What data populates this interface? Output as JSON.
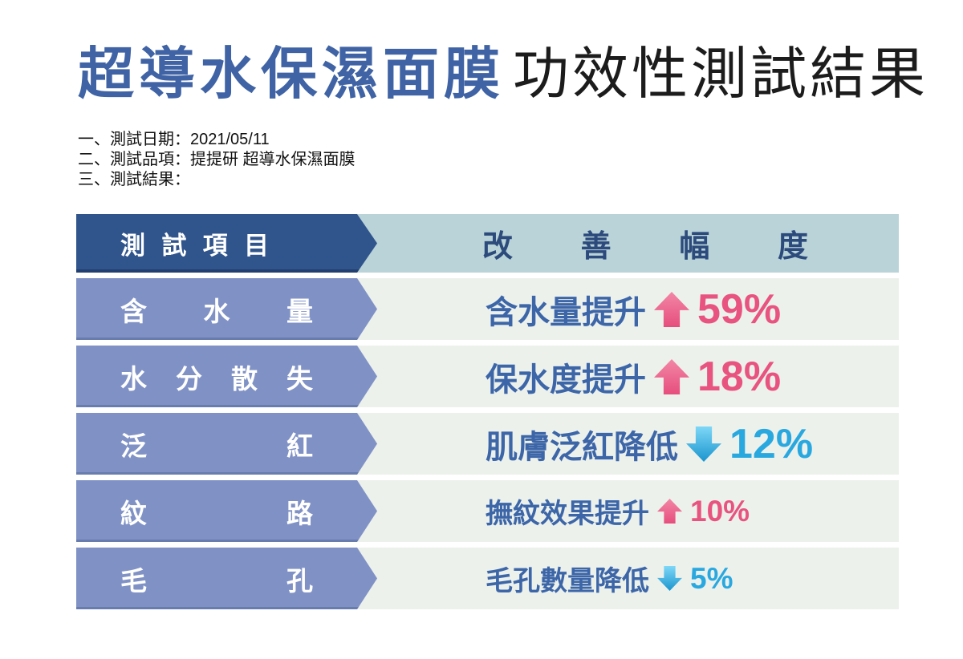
{
  "title": {
    "highlight": "超導水保濕面膜",
    "rest": "功效性測試結果"
  },
  "meta": {
    "lines": [
      "一、測試日期：2021/05/11",
      "二、測試品項：提提研 超導水保濕面膜",
      "三、測試結果："
    ]
  },
  "table": {
    "header": {
      "left": "測試項目",
      "right": "改善幅度"
    },
    "rows": [
      {
        "item": "含水量",
        "result": "含水量提升",
        "direction": "up",
        "value": "59%",
        "size": "large"
      },
      {
        "item": "水分散失",
        "result": "保水度提升",
        "direction": "up",
        "value": "18%",
        "size": "large"
      },
      {
        "item": "泛紅",
        "result": "肌膚泛紅降低",
        "direction": "down",
        "value": "12%",
        "size": "large"
      },
      {
        "item": "紋路",
        "result": "撫紋效果提升",
        "direction": "up",
        "value": "10%",
        "size": "small"
      },
      {
        "item": "毛孔",
        "result": "毛孔數量降低",
        "direction": "down",
        "value": "5%",
        "size": "small"
      }
    ]
  },
  "icons": {
    "up_arrow": "up-arrow-icon",
    "down_arrow": "down-arrow-icon"
  },
  "colors": {
    "title_highlight": "#3f63a4",
    "title_rest": "#1c1c1c",
    "header_arrow_bg": "#30548c",
    "header_right_bg": "#b9d3d8",
    "header_right_text": "#2c4a7b",
    "row_arrow_bg": "#8092c5",
    "row_right_bg": "#ecf1ec",
    "result_text": "#3d66a8",
    "increase_pink": "#e8537f",
    "decrease_blue": "#29a8e0"
  }
}
